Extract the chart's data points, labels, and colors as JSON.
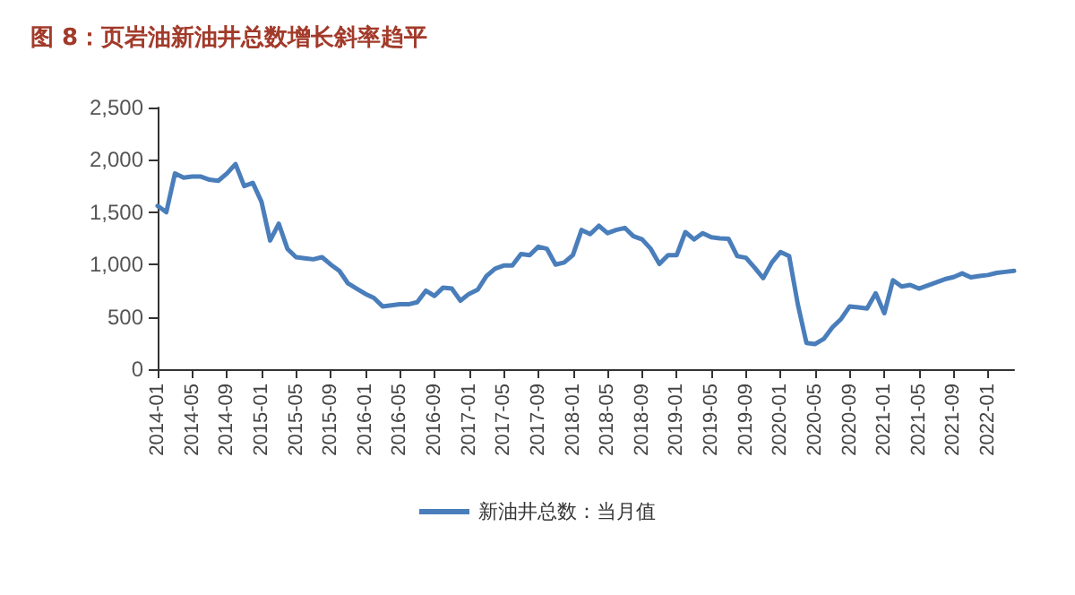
{
  "chart_data": {
    "type": "line",
    "title": "图 8：页岩油新油井总数增长斜率趋平",
    "categories": [
      "2014-01",
      null,
      null,
      null,
      "2014-05",
      null,
      null,
      null,
      "2014-09",
      null,
      null,
      null,
      "2015-01",
      null,
      null,
      null,
      "2015-05",
      null,
      null,
      null,
      "2015-09",
      null,
      null,
      null,
      "2016-01",
      null,
      null,
      null,
      "2016-05",
      null,
      null,
      null,
      "2016-09",
      null,
      null,
      null,
      "2017-01",
      null,
      null,
      null,
      "2017-05",
      null,
      null,
      null,
      "2017-09",
      null,
      null,
      null,
      "2018-01",
      null,
      null,
      null,
      "2018-05",
      null,
      null,
      null,
      "2018-09",
      null,
      null,
      null,
      "2019-01",
      null,
      null,
      null,
      "2019-05",
      null,
      null,
      null,
      "2019-09",
      null,
      null,
      null,
      "2020-01",
      null,
      null,
      null,
      "2020-05",
      null,
      null,
      null,
      "2020-09",
      null,
      null,
      null,
      "2021-01",
      null,
      null,
      null,
      "2021-05",
      null,
      null,
      null,
      "2021-09",
      null,
      null,
      null,
      "2022-01",
      null,
      null,
      null
    ],
    "series": [
      {
        "name": "新油井总数：当月值",
        "color": "#4a7ebb",
        "values": [
          1560,
          1500,
          1870,
          1830,
          1840,
          1840,
          1810,
          1800,
          1870,
          1960,
          1750,
          1780,
          1600,
          1230,
          1390,
          1150,
          1070,
          1060,
          1050,
          1070,
          1000,
          940,
          820,
          770,
          720,
          680,
          600,
          610,
          620,
          620,
          640,
          750,
          700,
          780,
          770,
          655,
          720,
          760,
          890,
          960,
          990,
          990,
          1100,
          1090,
          1170,
          1150,
          1000,
          1020,
          1090,
          1330,
          1290,
          1370,
          1300,
          1330,
          1350,
          1270,
          1240,
          1150,
          1005,
          1090,
          1090,
          1310,
          1240,
          1300,
          1260,
          1250,
          1245,
          1080,
          1065,
          970,
          870,
          1020,
          1120,
          1080,
          620,
          250,
          240,
          290,
          400,
          480,
          600,
          590,
          580,
          725,
          535,
          850,
          790,
          805,
          770,
          800,
          830,
          860,
          880,
          915,
          877,
          890,
          900,
          920,
          930,
          940
        ]
      }
    ],
    "ylim": [
      0,
      2500
    ],
    "yticks": [
      0,
      {
        "value": 500,
        "label": "500"
      },
      {
        "value": 1000,
        "label": "1,000"
      },
      {
        "value": 1500,
        "label": "1,500"
      },
      {
        "value": 2000,
        "label": "2,000"
      },
      {
        "value": 2500,
        "label": "2,500"
      }
    ],
    "grid": false,
    "legend": "bottom",
    "marker": "none",
    "line_style": "solid"
  }
}
